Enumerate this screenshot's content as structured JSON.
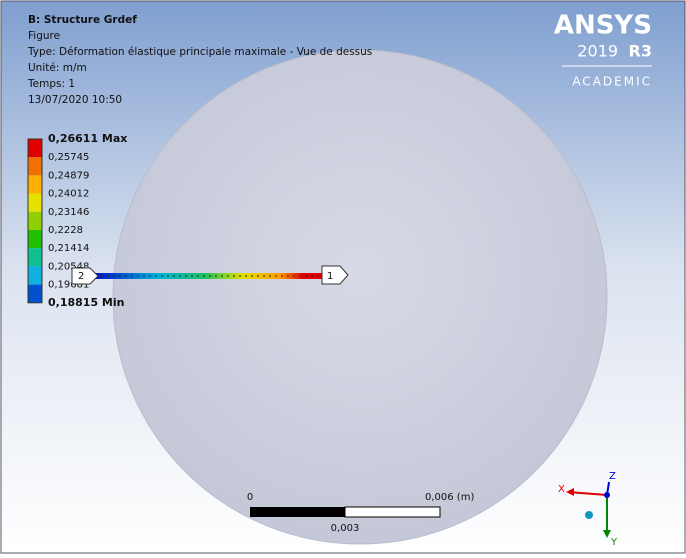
{
  "header": {
    "lines": [
      "B: Structure Grdef",
      "Figure",
      "Type: Déformation élastique principale maximale - Vue de dessus",
      "Unité: m/m",
      "Temps: 1",
      "13/07/2020 10:50"
    ]
  },
  "legend": {
    "labels": [
      "0,26611 Max",
      "0,25745",
      "0,24879",
      "0,24012",
      "0,23146",
      "0,2228",
      "0,21414",
      "0,20548",
      "0,19681",
      "0,18815 Min"
    ]
  },
  "logo": {
    "brand": "ANSYS",
    "version": "2019",
    "release": "R3",
    "edition": "ACADEMIC"
  },
  "probes": [
    "2",
    "1"
  ],
  "scale_bar": {
    "start": "0",
    "end": "0,006 (m)",
    "middle": "0,003"
  },
  "triad": {
    "x": "X",
    "y": "Y",
    "z": "Z"
  }
}
